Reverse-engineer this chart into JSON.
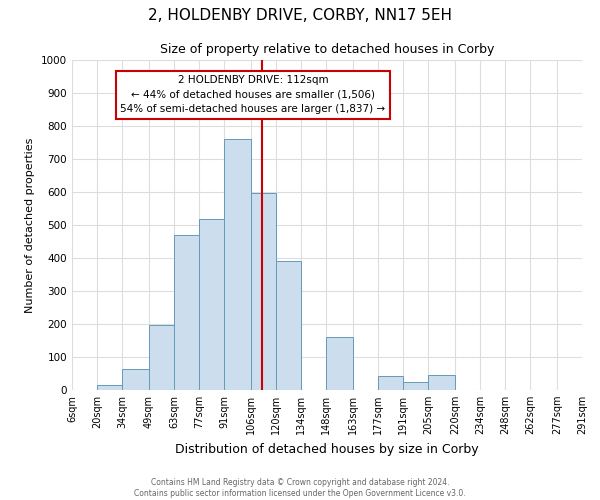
{
  "title": "2, HOLDENBY DRIVE, CORBY, NN17 5EH",
  "subtitle": "Size of property relative to detached houses in Corby",
  "xlabel": "Distribution of detached houses by size in Corby",
  "ylabel": "Number of detached properties",
  "footer_line1": "Contains HM Land Registry data © Crown copyright and database right 2024.",
  "footer_line2": "Contains public sector information licensed under the Open Government Licence v3.0.",
  "bin_labels": [
    "6sqm",
    "20sqm",
    "34sqm",
    "49sqm",
    "63sqm",
    "77sqm",
    "91sqm",
    "106sqm",
    "120sqm",
    "134sqm",
    "148sqm",
    "163sqm",
    "177sqm",
    "191sqm",
    "205sqm",
    "220sqm",
    "234sqm",
    "248sqm",
    "262sqm",
    "277sqm",
    "291sqm"
  ],
  "bin_lefts": [
    6,
    20,
    34,
    49,
    63,
    77,
    91,
    106,
    120,
    134,
    148,
    163,
    177,
    191,
    205,
    220,
    234,
    248,
    262,
    277
  ],
  "bin_rights": [
    20,
    34,
    49,
    63,
    77,
    91,
    106,
    120,
    134,
    148,
    163,
    177,
    191,
    205,
    220,
    234,
    248,
    262,
    277,
    291
  ],
  "bar_heights": [
    0,
    15,
    63,
    197,
    470,
    518,
    760,
    597,
    390,
    0,
    160,
    0,
    43,
    25,
    45,
    0,
    0,
    0,
    0,
    0
  ],
  "bar_color": "#ccdded",
  "bar_edgecolor": "#6699bb",
  "vline_x": 112,
  "vline_color": "#cc0000",
  "annotation_title": "2 HOLDENBY DRIVE: 112sqm",
  "annotation_line2": "← 44% of detached houses are smaller (1,506)",
  "annotation_line3": "54% of semi-detached houses are larger (1,837) →",
  "annotation_box_edgecolor": "#cc0000",
  "annotation_box_facecolor": "white",
  "ylim": [
    0,
    1000
  ],
  "yticks": [
    0,
    100,
    200,
    300,
    400,
    500,
    600,
    700,
    800,
    900,
    1000
  ],
  "xlim_left": 6,
  "xlim_right": 291,
  "grid_color": "#dddddd",
  "title_fontsize": 11,
  "subtitle_fontsize": 9,
  "xlabel_fontsize": 9,
  "ylabel_fontsize": 8,
  "tick_fontsize": 7,
  "footer_fontsize": 5.5,
  "annotation_fontsize": 7.5
}
